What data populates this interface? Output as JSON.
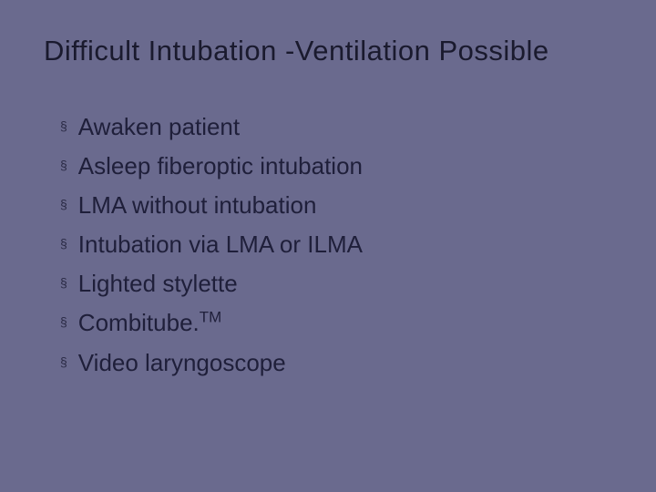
{
  "slide": {
    "background_color": "#6a6a8e",
    "title": "Difficult Intubation -Ventilation Possible",
    "title_color": "#1a1a2e",
    "title_fontsize": 31,
    "bullet_marker": "§",
    "bullet_marker_color": "#2a2a45",
    "text_color": "#1f1f3a",
    "text_fontsize": 26,
    "items": [
      {
        "text": "Awaken patient",
        "has_sup": false
      },
      {
        "text": "Asleep fiberoptic intubation",
        "has_sup": false
      },
      {
        "text": "LMA without intubation",
        "has_sup": false
      },
      {
        "text": "Intubation via LMA or ILMA",
        "has_sup": false
      },
      {
        "text": "Lighted stylette",
        "has_sup": false
      },
      {
        "text": "Combitube.",
        "has_sup": true,
        "sup": "TM"
      },
      {
        "text": "Video laryngoscope",
        "has_sup": false
      }
    ]
  }
}
